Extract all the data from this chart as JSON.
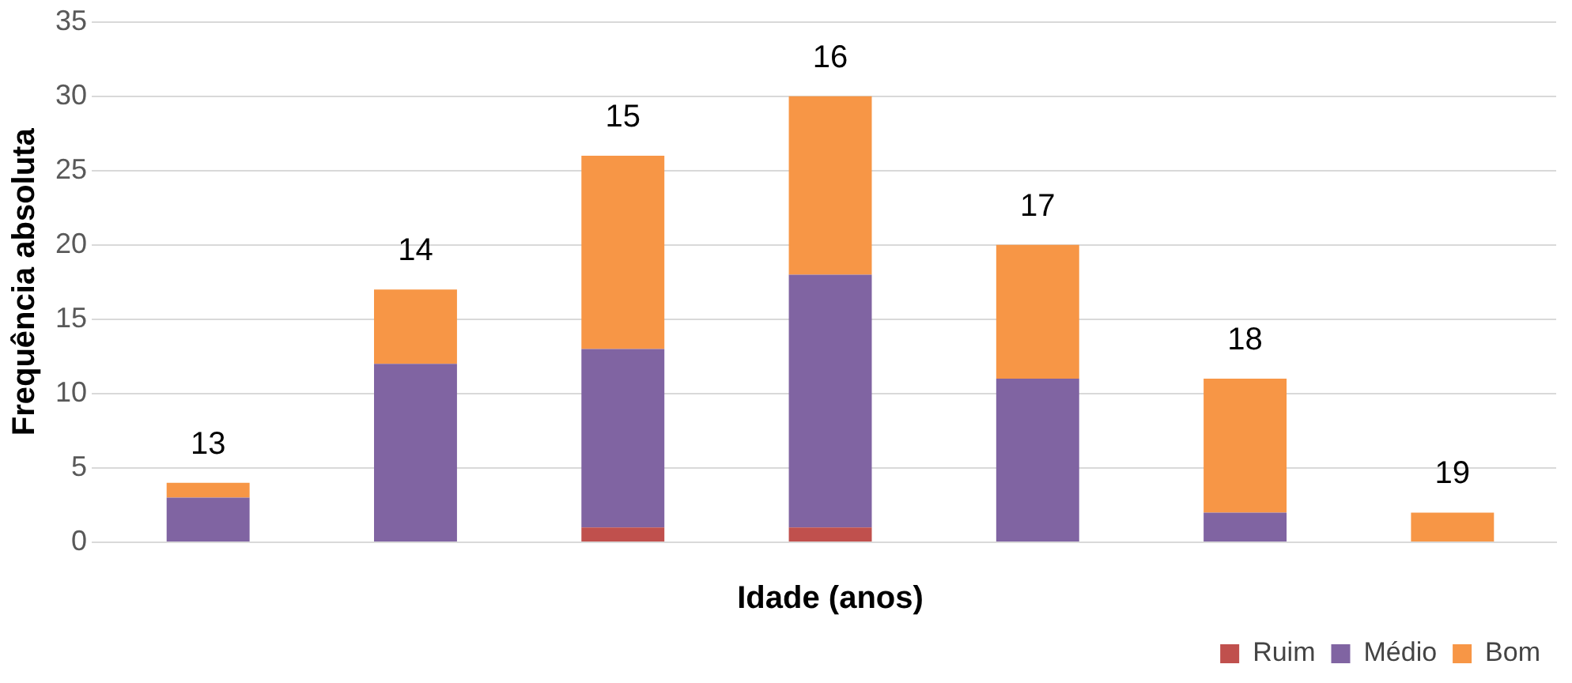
{
  "chart_data": {
    "type": "bar",
    "stacked": true,
    "xlabel": "Idade (anos)",
    "ylabel": "Frequência absoluta",
    "categories": [
      "13",
      "14",
      "15",
      "16",
      "17",
      "18",
      "19"
    ],
    "series": [
      {
        "name": "Ruim",
        "color": "#c0504d",
        "values": [
          0,
          0,
          1,
          1,
          0,
          0,
          0
        ]
      },
      {
        "name": "Médio",
        "color": "#8064a2",
        "values": [
          3,
          12,
          12,
          17,
          11,
          2,
          0
        ]
      },
      {
        "name": "Bom",
        "color": "#f79646",
        "values": [
          1,
          5,
          13,
          12,
          9,
          9,
          2
        ]
      }
    ],
    "ylim": [
      0,
      35
    ],
    "yticks": [
      0,
      5,
      10,
      15,
      20,
      25,
      30,
      35
    ],
    "grid": "y",
    "legend": "bottom right"
  }
}
